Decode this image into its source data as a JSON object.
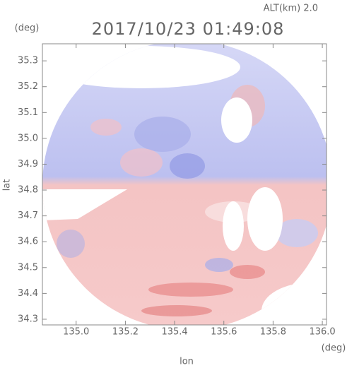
{
  "chart_data": {
    "type": "image",
    "title": "2017/10/23 01:49:08",
    "subtitle": "ALT(km) 2.0",
    "x_label": "lon",
    "y_label": "lat",
    "x_unit": "(deg)",
    "y_unit": "(deg)",
    "xlim": [
      134.863,
      136.017
    ],
    "ylim": [
      34.278,
      35.366
    ],
    "xticks": [
      {
        "value": 135,
        "label": "135.0"
      },
      135.2,
      135.4,
      135.6,
      135.8,
      {
        "value": 136,
        "label": "136.0"
      }
    ],
    "yticks": [
      35.3,
      35.2,
      35.1,
      {
        "value": 35,
        "label": "35.0"
      },
      34.9,
      34.8,
      34.7,
      34.6,
      34.5,
      34.4,
      34.3
    ]
  }
}
